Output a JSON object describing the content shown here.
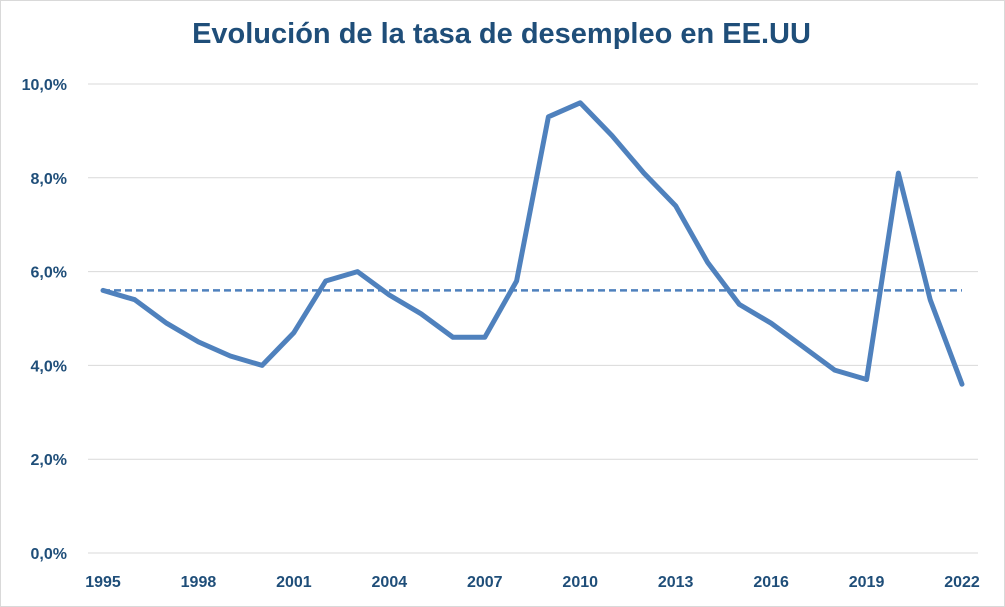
{
  "chart_data": {
    "type": "line",
    "title": "Evolución de la tasa de desempleo en EE.UU",
    "xlabel": "",
    "ylabel": "",
    "x": [
      1995,
      1996,
      1997,
      1998,
      1999,
      2000,
      2001,
      2002,
      2003,
      2004,
      2005,
      2006,
      2007,
      2008,
      2009,
      2010,
      2011,
      2012,
      2013,
      2014,
      2015,
      2016,
      2017,
      2018,
      2019,
      2020,
      2021,
      2022
    ],
    "x_tick_labels": [
      "1995",
      "1998",
      "2001",
      "2004",
      "2007",
      "2010",
      "2013",
      "2016",
      "2019",
      "2022"
    ],
    "y_tick_labels": [
      "0,0%",
      "2,0%",
      "4,0%",
      "6,0%",
      "8,0%",
      "10,0%"
    ],
    "ylim": [
      0,
      10
    ],
    "grid": true,
    "legend": "none",
    "series": [
      {
        "values": [
          5.6,
          5.4,
          4.9,
          4.5,
          4.2,
          4.0,
          4.7,
          5.8,
          6.0,
          5.5,
          5.1,
          4.6,
          4.6,
          5.8,
          9.3,
          9.6,
          8.9,
          8.1,
          7.4,
          6.2,
          5.3,
          4.9,
          4.4,
          3.9,
          3.7,
          8.1,
          5.4,
          3.6
        ],
        "color": "#4f81bd",
        "style": "solid"
      },
      {
        "values": [
          5.6,
          5.6,
          5.6,
          5.6,
          5.6,
          5.6,
          5.6,
          5.6,
          5.6,
          5.6,
          5.6,
          5.6,
          5.6,
          5.6,
          5.6,
          5.6,
          5.6,
          5.6,
          5.6,
          5.6,
          5.6,
          5.6,
          5.6,
          5.6,
          5.6,
          5.6,
          5.6,
          5.6
        ],
        "color": "#4f81bd",
        "style": "dashed"
      }
    ]
  },
  "colors": {
    "title": "#1f4e79",
    "grid": "#d9d9d9",
    "line": "#4f81bd"
  }
}
